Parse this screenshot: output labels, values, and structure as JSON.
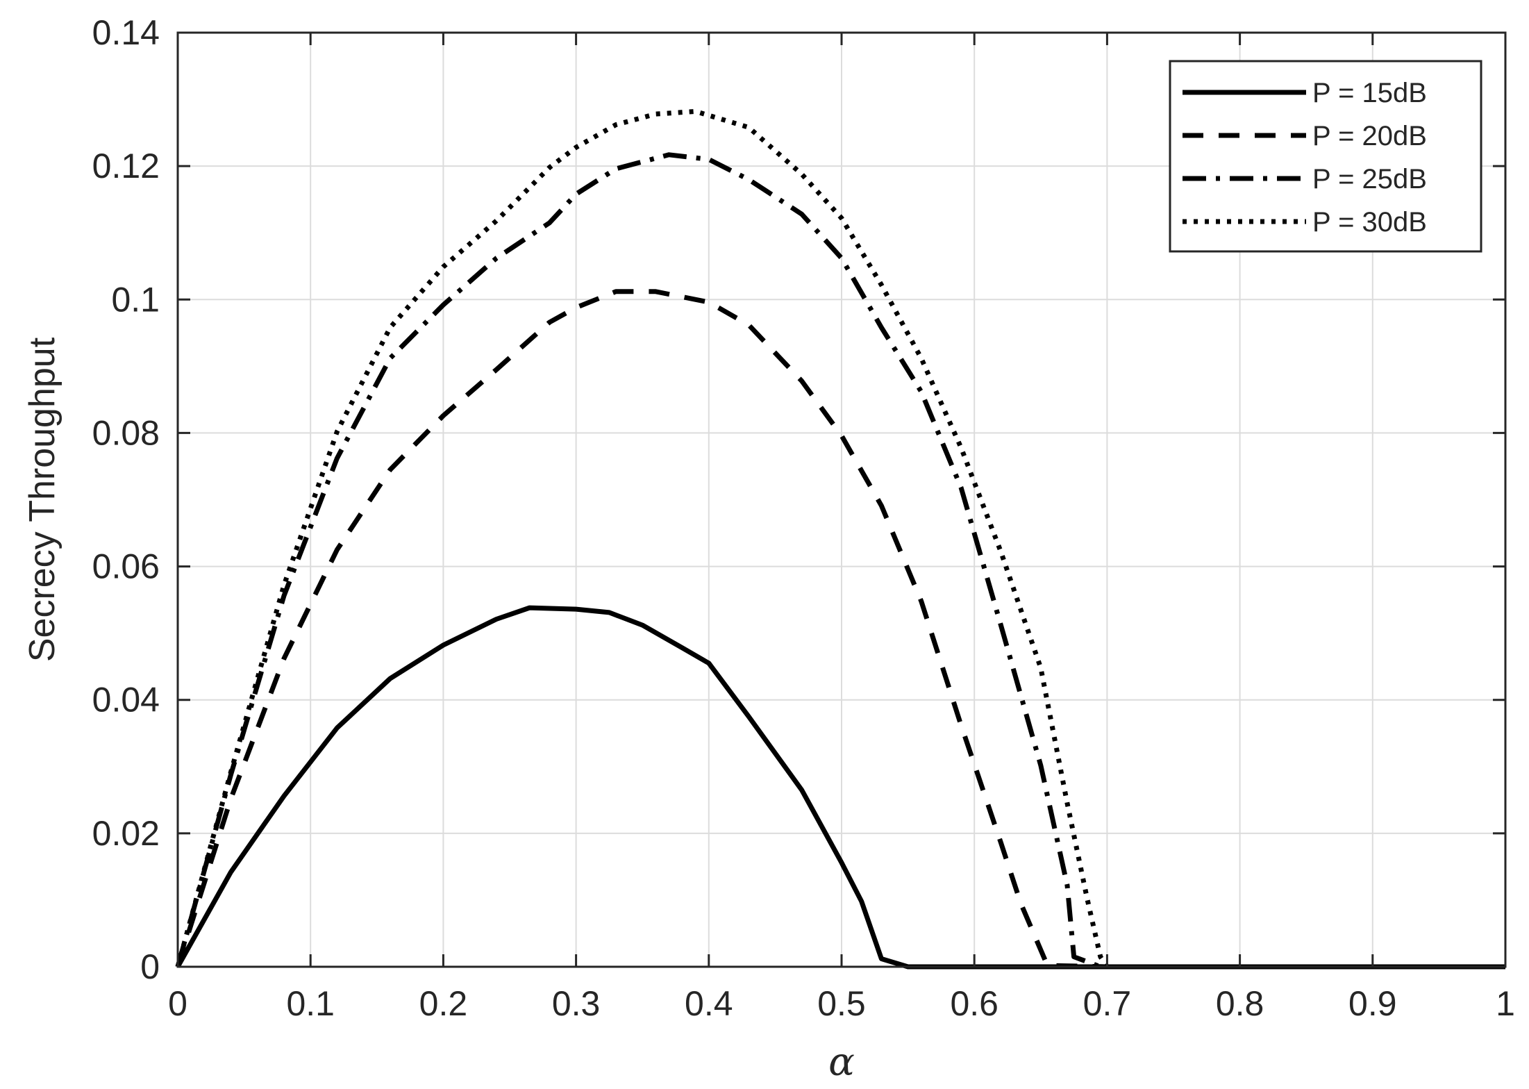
{
  "chart_data": {
    "type": "line",
    "title": "",
    "xlabel": "α",
    "ylabel": "Secrecy Throughput",
    "xlim": [
      0,
      1
    ],
    "ylim": [
      0,
      0.14
    ],
    "grid": true,
    "legend_position": "top-right",
    "x_ticks": [
      0,
      0.1,
      0.2,
      0.3,
      0.4,
      0.5,
      0.6,
      0.7,
      0.8,
      0.9,
      1
    ],
    "x_tick_labels": [
      "0",
      "0.1",
      "0.2",
      "0.3",
      "0.4",
      "0.5",
      "0.6",
      "0.7",
      "0.8",
      "0.9",
      "1"
    ],
    "y_ticks": [
      0,
      0.02,
      0.04,
      0.06,
      0.08,
      0.1,
      0.12,
      0.14
    ],
    "y_tick_labels": [
      "0",
      "0.02",
      "0.04",
      "0.06",
      "0.08",
      "0.1",
      "0.12",
      "0.14"
    ],
    "series": [
      {
        "name": "P = 15dB",
        "style": "solid",
        "color": "#000000",
        "points": [
          [
            0,
            0
          ],
          [
            0.04,
            0.0142
          ],
          [
            0.08,
            0.0256
          ],
          [
            0.12,
            0.0358
          ],
          [
            0.16,
            0.0432
          ],
          [
            0.2,
            0.0482
          ],
          [
            0.24,
            0.0521
          ],
          [
            0.265,
            0.0538
          ],
          [
            0.3,
            0.0536
          ],
          [
            0.325,
            0.0531
          ],
          [
            0.35,
            0.0512
          ],
          [
            0.38,
            0.0478
          ],
          [
            0.4,
            0.0455
          ],
          [
            0.43,
            0.0375
          ],
          [
            0.47,
            0.0265
          ],
          [
            0.5,
            0.0156
          ],
          [
            0.515,
            0.0098
          ],
          [
            0.53,
            0.0012
          ],
          [
            0.55,
            0
          ],
          [
            0.6,
            0
          ],
          [
            0.7,
            0
          ],
          [
            0.8,
            0
          ],
          [
            0.9,
            0
          ],
          [
            1,
            0
          ]
        ]
      },
      {
        "name": "P = 20dB",
        "style": "dashed",
        "color": "#000000",
        "points": [
          [
            0,
            0
          ],
          [
            0.04,
            0.0252
          ],
          [
            0.08,
            0.0462
          ],
          [
            0.12,
            0.0625
          ],
          [
            0.16,
            0.0745
          ],
          [
            0.2,
            0.0826
          ],
          [
            0.24,
            0.0895
          ],
          [
            0.28,
            0.0966
          ],
          [
            0.3,
            0.0988
          ],
          [
            0.33,
            0.1012
          ],
          [
            0.36,
            0.1012
          ],
          [
            0.4,
            0.0996
          ],
          [
            0.43,
            0.0962
          ],
          [
            0.47,
            0.0878
          ],
          [
            0.5,
            0.0796
          ],
          [
            0.53,
            0.0691
          ],
          [
            0.56,
            0.0548
          ],
          [
            0.59,
            0.0362
          ],
          [
            0.62,
            0.0186
          ],
          [
            0.635,
            0.0095
          ],
          [
            0.655,
            0.0002
          ],
          [
            0.7,
            0
          ],
          [
            0.8,
            0
          ],
          [
            0.9,
            0
          ],
          [
            1,
            0
          ]
        ]
      },
      {
        "name": "P = 25dB",
        "style": "dashdot",
        "color": "#000000",
        "points": [
          [
            0,
            0
          ],
          [
            0.04,
            0.0288
          ],
          [
            0.08,
            0.0556
          ],
          [
            0.12,
            0.0762
          ],
          [
            0.16,
            0.0912
          ],
          [
            0.2,
            0.0992
          ],
          [
            0.24,
            0.1062
          ],
          [
            0.28,
            0.1115
          ],
          [
            0.3,
            0.1158
          ],
          [
            0.33,
            0.1196
          ],
          [
            0.37,
            0.1217
          ],
          [
            0.4,
            0.121
          ],
          [
            0.43,
            0.118
          ],
          [
            0.47,
            0.1128
          ],
          [
            0.5,
            0.1062
          ],
          [
            0.53,
            0.0958
          ],
          [
            0.56,
            0.0862
          ],
          [
            0.59,
            0.0718
          ],
          [
            0.62,
            0.0512
          ],
          [
            0.65,
            0.0302
          ],
          [
            0.67,
            0.0122
          ],
          [
            0.675,
            0.0015
          ],
          [
            0.695,
            0
          ],
          [
            0.8,
            0
          ],
          [
            0.9,
            0
          ],
          [
            1,
            0
          ]
        ]
      },
      {
        "name": "P = 30dB",
        "style": "dotted",
        "color": "#000000",
        "points": [
          [
            0,
            0
          ],
          [
            0.04,
            0.0292
          ],
          [
            0.08,
            0.0572
          ],
          [
            0.12,
            0.0802
          ],
          [
            0.16,
            0.0958
          ],
          [
            0.2,
            0.1049
          ],
          [
            0.24,
            0.1118
          ],
          [
            0.28,
            0.1198
          ],
          [
            0.3,
            0.1228
          ],
          [
            0.33,
            0.1262
          ],
          [
            0.36,
            0.1278
          ],
          [
            0.39,
            0.1282
          ],
          [
            0.43,
            0.1258
          ],
          [
            0.47,
            0.1188
          ],
          [
            0.5,
            0.1122
          ],
          [
            0.53,
            0.1022
          ],
          [
            0.56,
            0.0912
          ],
          [
            0.59,
            0.0778
          ],
          [
            0.62,
            0.0622
          ],
          [
            0.65,
            0.0448
          ],
          [
            0.67,
            0.0245
          ],
          [
            0.685,
            0.0102
          ],
          [
            0.695,
            0.0015
          ],
          [
            0.7,
            0
          ],
          [
            0.8,
            0
          ],
          [
            0.9,
            0
          ],
          [
            1,
            0
          ]
        ]
      }
    ]
  }
}
